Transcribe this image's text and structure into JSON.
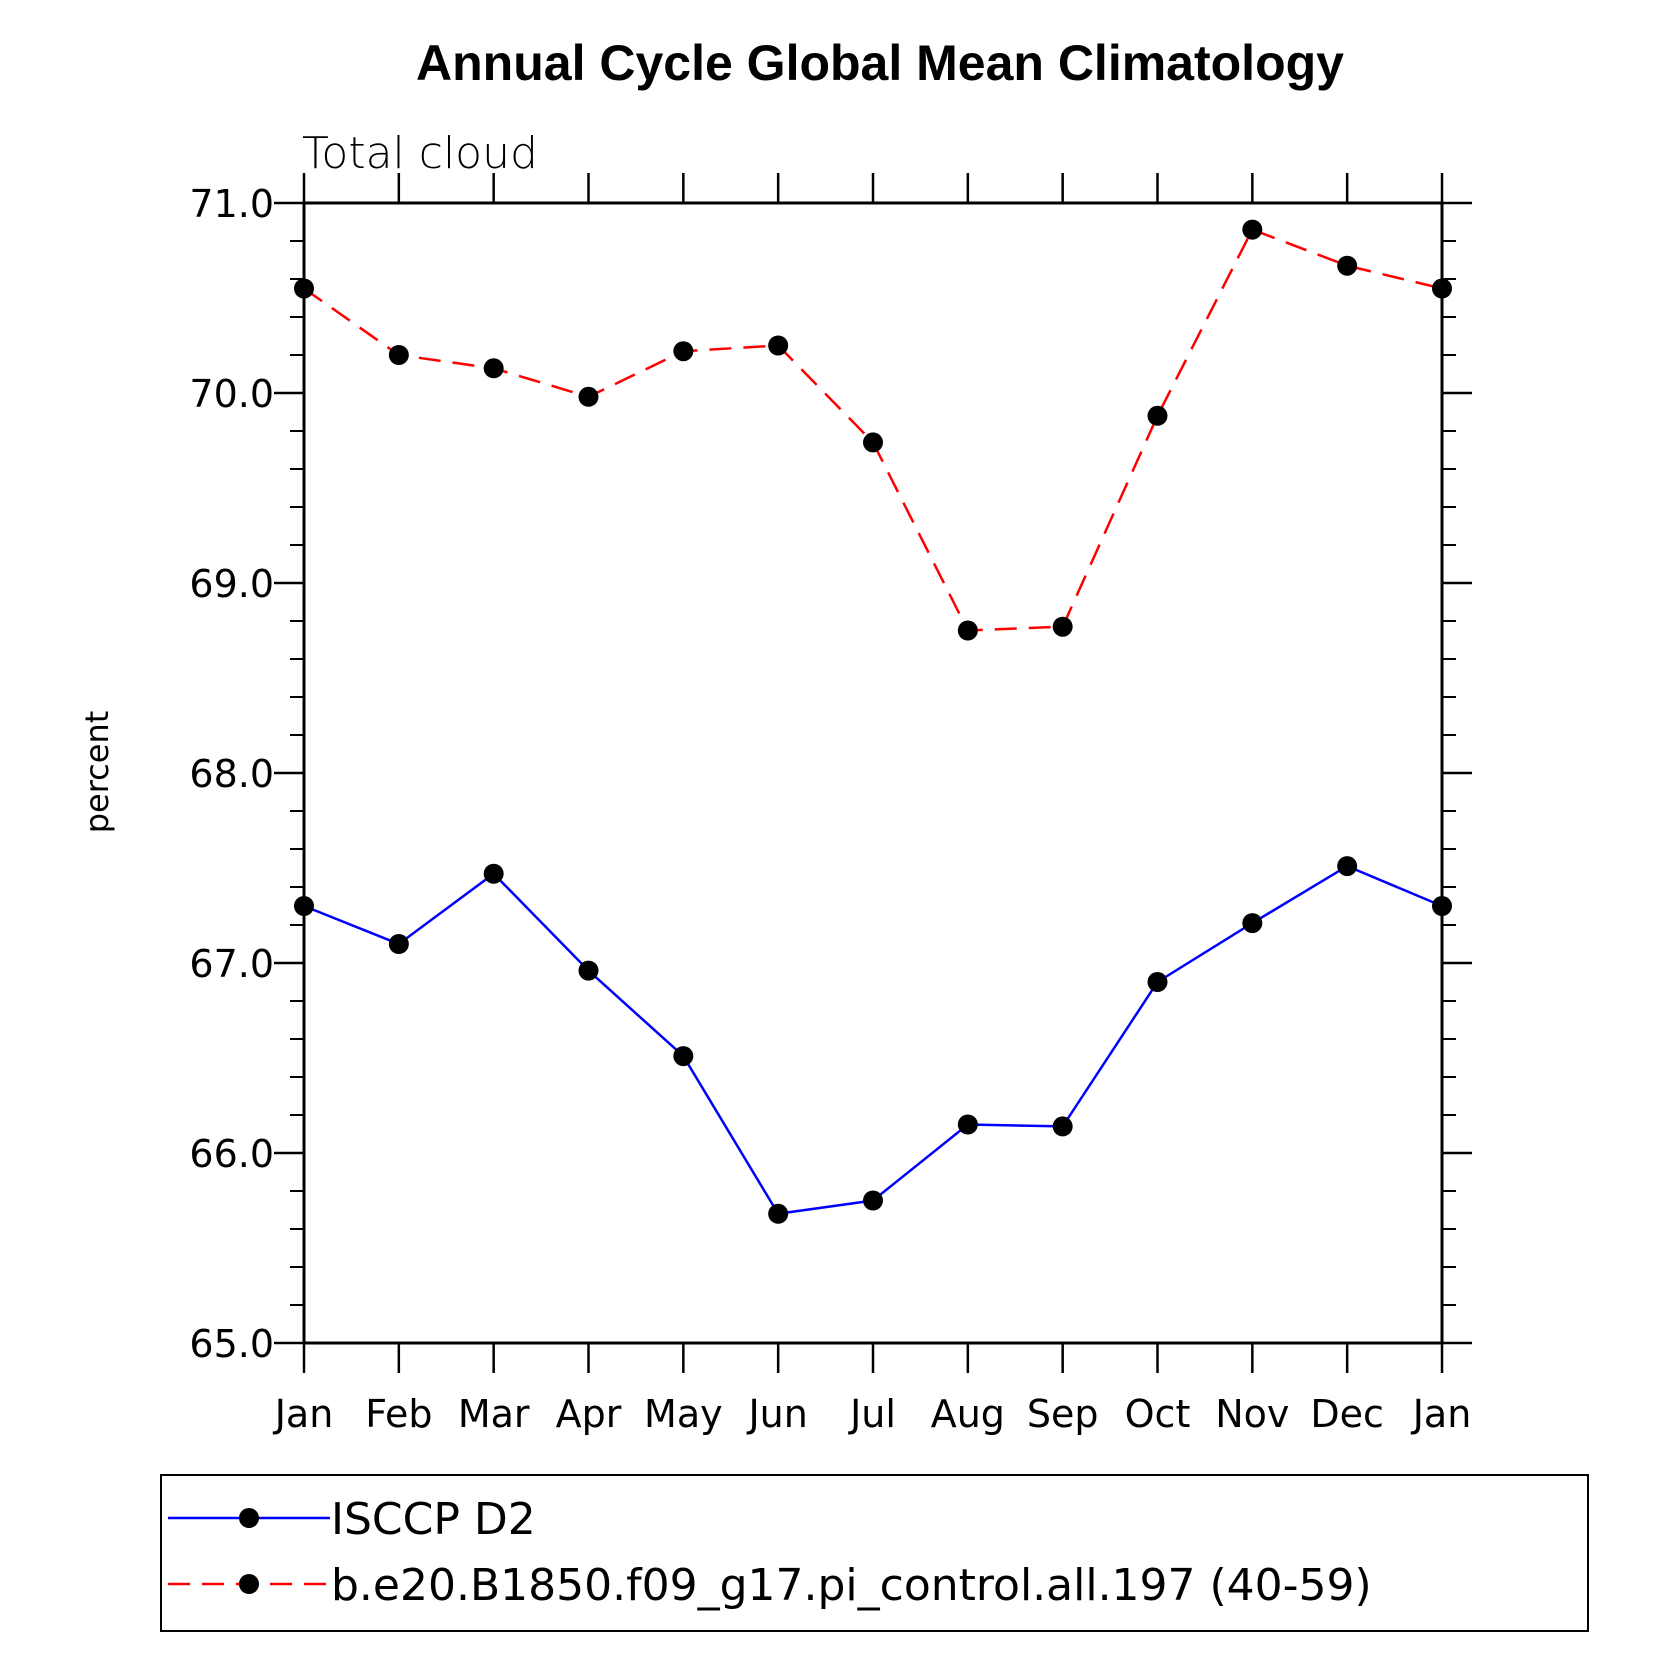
{
  "chart_data": {
    "type": "line",
    "title": "Annual Cycle Global Mean Climatology",
    "subtitle": "Total cloud",
    "xlabel": "",
    "ylabel": "percent",
    "categories": [
      "Jan",
      "Feb",
      "Mar",
      "Apr",
      "May",
      "Jun",
      "Jul",
      "Aug",
      "Sep",
      "Oct",
      "Nov",
      "Dec",
      "Jan"
    ],
    "ylim": [
      65.0,
      71.0
    ],
    "yticks": [
      "65.0",
      "66.0",
      "67.0",
      "68.0",
      "69.0",
      "70.0",
      "71.0"
    ],
    "grid": false,
    "legend_position": "bottom",
    "series": [
      {
        "name": "ISCCP D2",
        "color": "#0000ff",
        "line_style": "solid",
        "marker": "circle",
        "values": [
          67.3,
          67.1,
          67.47,
          66.96,
          66.51,
          65.68,
          65.75,
          66.15,
          66.14,
          66.9,
          67.21,
          67.51,
          67.3
        ]
      },
      {
        "name": "b.e20.B1850.f09_g17.pi_control.all.197 (40-59)",
        "color": "#ff0000",
        "line_style": "dashed",
        "marker": "circle",
        "values": [
          70.55,
          70.2,
          70.13,
          69.98,
          70.22,
          70.25,
          69.74,
          68.75,
          68.77,
          69.88,
          70.86,
          70.67,
          70.55
        ]
      }
    ]
  }
}
